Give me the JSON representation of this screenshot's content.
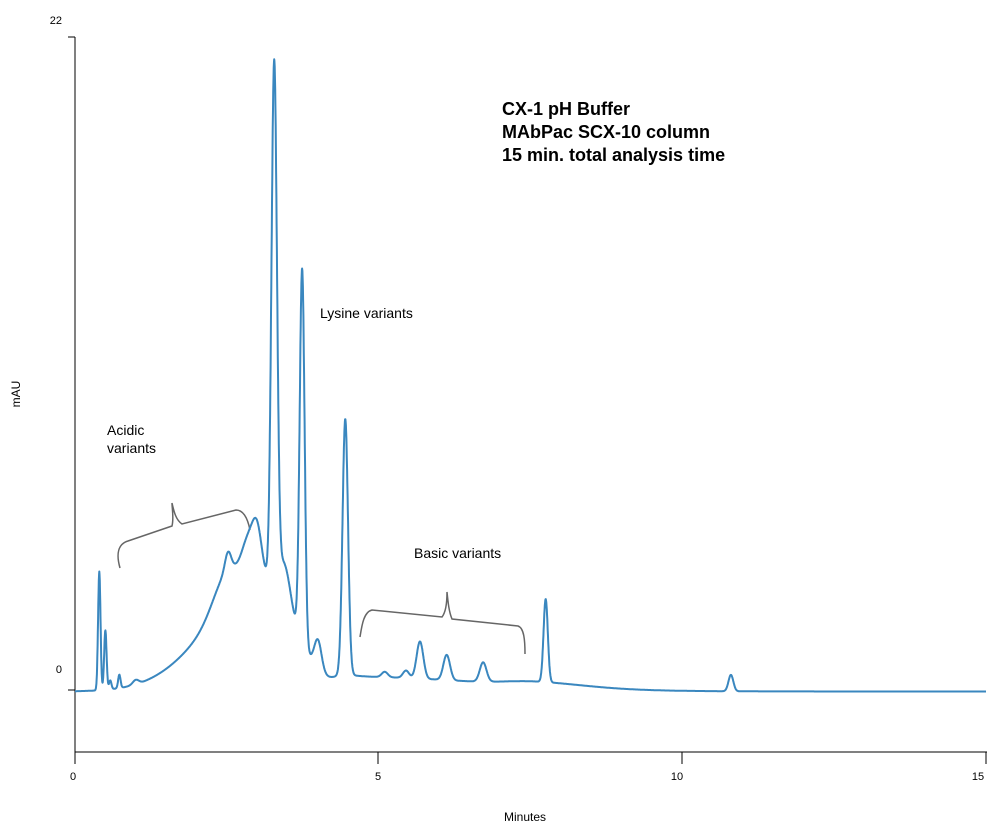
{
  "chart_data": {
    "type": "line",
    "title": "",
    "xlabel": "Minutes",
    "ylabel": "mAU",
    "xlim": [
      0,
      15
    ],
    "ylim": [
      0,
      22
    ],
    "x_ticks": [
      "0",
      "5",
      "10",
      "15"
    ],
    "y_ticks": [
      "22",
      "0"
    ],
    "grid": false,
    "legend": "none",
    "info_lines": [
      "CX-1 pH Buffer",
      "MAbPac SCX-10 column",
      "15 min. total analysis time"
    ],
    "annotations": [
      {
        "lines": [
          "Lysine variants"
        ]
      },
      {
        "lines": [
          "Acidic",
          "variants"
        ],
        "bracket_x": [
          0.75,
          2.9
        ]
      },
      {
        "lines": [
          "Basic variants"
        ],
        "bracket_x": [
          4.75,
          7.45
        ]
      }
    ],
    "series": [
      {
        "color": "#3a87bf",
        "baseline": -0.05,
        "peaks": [
          {
            "t": 0.4,
            "h": 4.0,
            "w": 0.02
          },
          {
            "t": 0.5,
            "h": 2.0,
            "w": 0.02
          },
          {
            "t": 0.58,
            "h": 0.3,
            "w": 0.02
          },
          {
            "t": 0.73,
            "h": 0.45,
            "w": 0.02
          },
          {
            "t": 1.0,
            "h": 0.15,
            "w": 0.05
          },
          {
            "t": 2.5,
            "h": 1.1,
            "w": 0.22
          },
          {
            "t": 2.52,
            "h": 0.6,
            "w": 0.05
          },
          {
            "t": 2.85,
            "h": 1.2,
            "w": 0.1
          },
          {
            "t": 3.0,
            "h": 1.6,
            "w": 0.08
          },
          {
            "t": 3.28,
            "h": 17.5,
            "w": 0.045
          },
          {
            "t": 3.45,
            "h": 1.4,
            "w": 0.1
          },
          {
            "t": 3.74,
            "h": 12.6,
            "w": 0.04
          },
          {
            "t": 4.0,
            "h": 1.0,
            "w": 0.06
          },
          {
            "t": 4.45,
            "h": 8.6,
            "w": 0.045
          },
          {
            "t": 5.1,
            "h": 0.18,
            "w": 0.05
          },
          {
            "t": 5.45,
            "h": 0.25,
            "w": 0.05
          },
          {
            "t": 5.68,
            "h": 1.25,
            "w": 0.055
          },
          {
            "t": 6.12,
            "h": 0.85,
            "w": 0.055
          },
          {
            "t": 6.72,
            "h": 0.65,
            "w": 0.055
          },
          {
            "t": 7.75,
            "h": 2.8,
            "w": 0.035
          },
          {
            "t": 10.8,
            "h": 0.55,
            "w": 0.04
          }
        ],
        "humps": [
          {
            "t": 3.1,
            "h": 3.7,
            "w": 0.9,
            "w2": 0.5
          },
          {
            "t": 4.5,
            "h": 0.5,
            "w": 0.2,
            "w2": 2.2
          },
          {
            "t": 7.6,
            "h": 0.15,
            "w": 0.5,
            "w2": 0.8
          }
        ]
      }
    ]
  }
}
